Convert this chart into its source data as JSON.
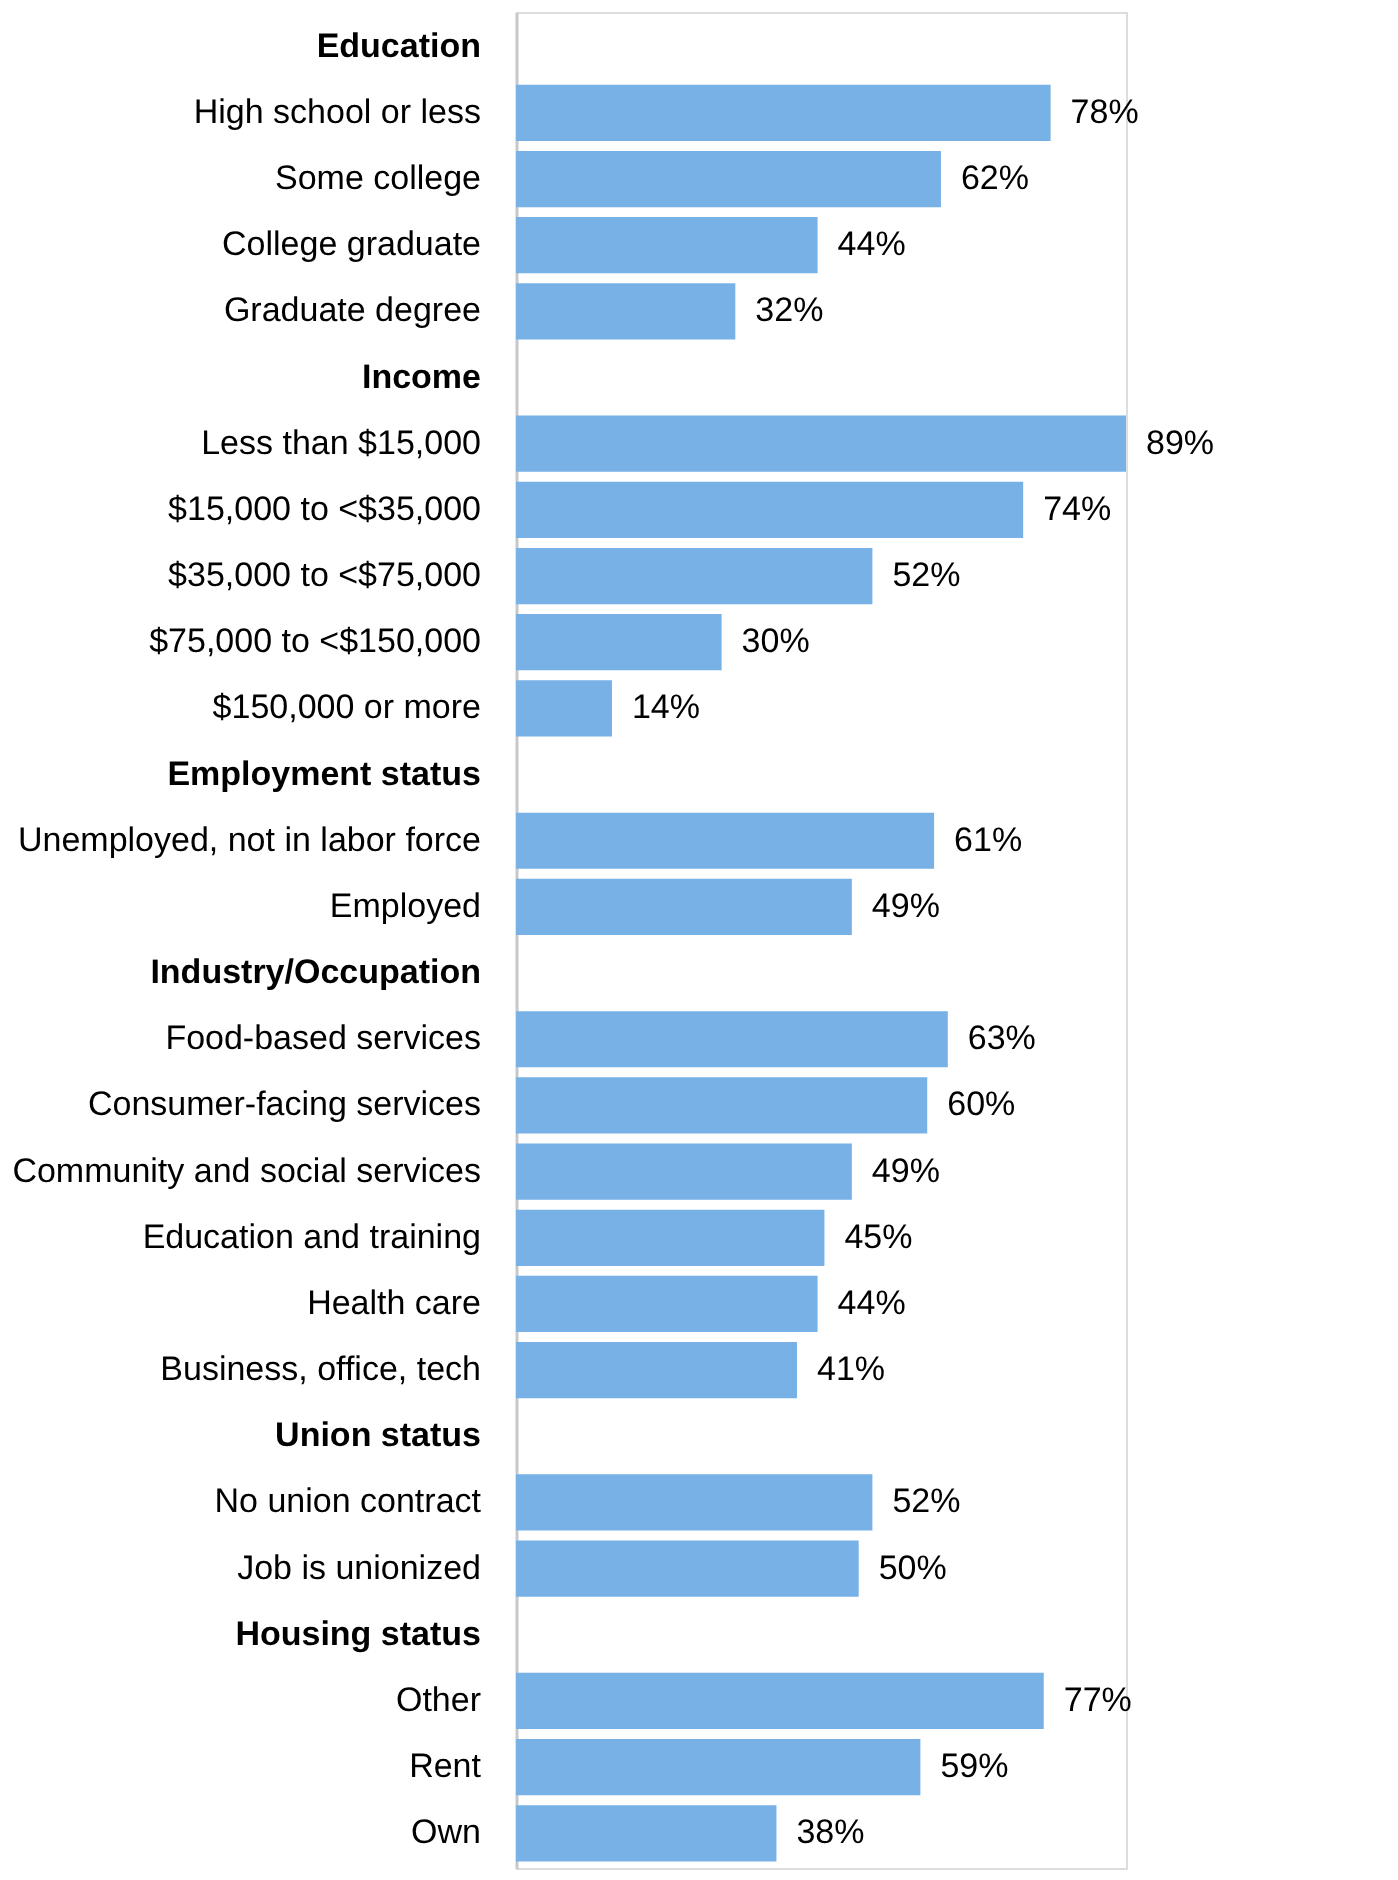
{
  "chart_data": {
    "type": "bar",
    "orientation": "horizontal",
    "color": "#77b1e5",
    "categories": [
      "Education",
      "High school or less",
      "Some college",
      "College graduate",
      "Graduate degree",
      "Income",
      "Less than $15,000",
      "$15,000 to <$35,000",
      "$35,000 to <$75,000",
      "$75,000 to <$150,000",
      "$150,000 or more",
      "Employment status",
      "Unemployed, not in labor force",
      "Employed",
      "Industry/Occupation",
      "Food-based services",
      "Consumer-facing services",
      "Community and social services",
      "Education and training",
      "Health care",
      "Business, office, tech",
      "Union status",
      "No union contract",
      "Job is unionized",
      "Housing status",
      "Other",
      "Rent",
      "Own"
    ],
    "values": [
      null,
      78,
      62,
      44,
      32,
      null,
      89,
      74,
      52,
      30,
      14,
      null,
      61,
      49,
      null,
      63,
      60,
      49,
      45,
      44,
      41,
      null,
      52,
      50,
      null,
      77,
      59,
      38
    ],
    "value_labels": [
      null,
      "78%",
      "62%",
      "44%",
      "32%",
      null,
      "89%",
      "74%",
      "52%",
      "30%",
      "14%",
      null,
      "61%",
      "49%",
      null,
      "63%",
      "60%",
      "49%",
      "45%",
      "44%",
      "41%",
      null,
      "52%",
      "50%",
      null,
      "77%",
      "59%",
      "38%"
    ],
    "tick_labels": "y"
  }
}
